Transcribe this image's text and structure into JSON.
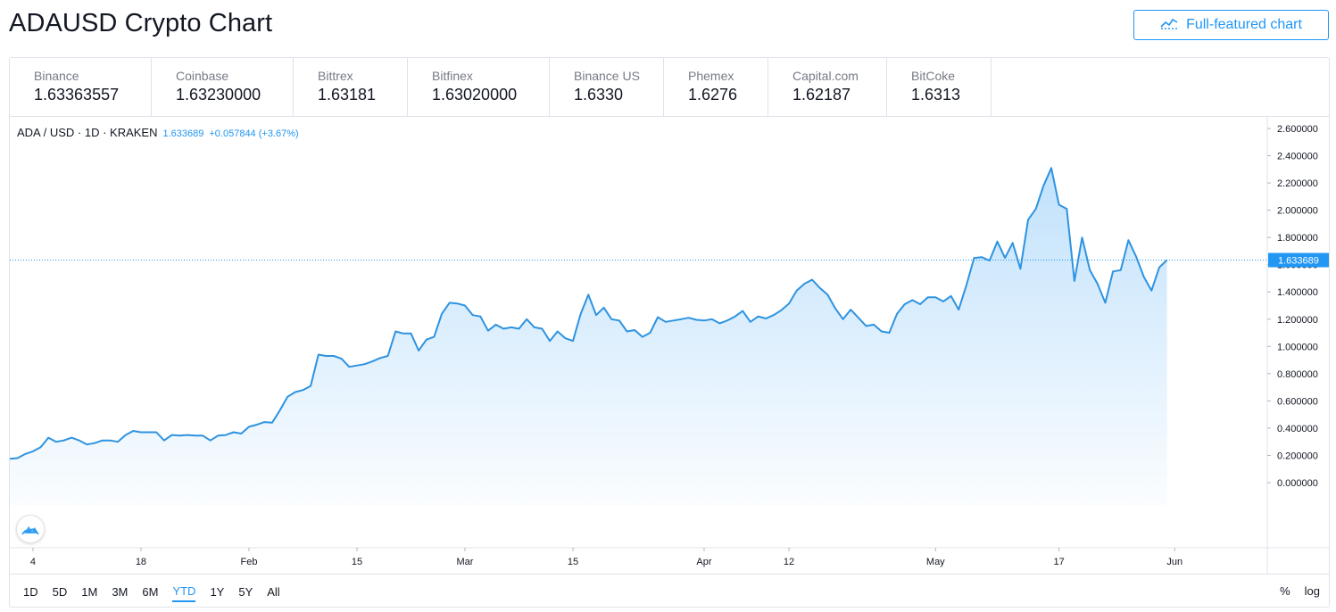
{
  "page": {
    "title": "ADAUSD Crypto Chart"
  },
  "toolbar": {
    "full_chart_label": "Full-featured chart"
  },
  "exchanges": [
    {
      "name": "Binance",
      "price": "1.63363557"
    },
    {
      "name": "Coinbase",
      "price": "1.63230000"
    },
    {
      "name": "Bittrex",
      "price": "1.63181"
    },
    {
      "name": "Bitfinex",
      "price": "1.63020000"
    },
    {
      "name": "Binance US",
      "price": "1.6330"
    },
    {
      "name": "Phemex",
      "price": "1.6276"
    },
    {
      "name": "Capital.com",
      "price": "1.62187"
    },
    {
      "name": "BitCoke",
      "price": "1.6313"
    }
  ],
  "legend": {
    "symbol": "ADA / USD · 1D · KRAKEN",
    "last": "1.633689",
    "change": "+0.057844 (+3.67%)"
  },
  "ranges": [
    "1D",
    "5D",
    "1M",
    "3M",
    "6M",
    "YTD",
    "1Y",
    "5Y",
    "All"
  ],
  "active_range": "YTD",
  "options": {
    "percent": "%",
    "log": "log"
  },
  "colors": {
    "accent": "#2196f3",
    "line": "#2e93e0",
    "grid_text": "#131722",
    "border": "#e0e3eb"
  },
  "icons": {
    "full_chart": "chart-trend-icon",
    "logo": "tradingview-cloud-icon"
  },
  "chart_data": {
    "type": "area",
    "ylim": [
      0,
      2.6
    ],
    "y_ticks": [
      "2.600000",
      "2.400000",
      "2.200000",
      "2.000000",
      "1.800000",
      "1.600000",
      "1.400000",
      "1.200000",
      "1.000000",
      "0.800000",
      "0.600000",
      "0.400000",
      "0.200000",
      "0.000000"
    ],
    "x_ticks": [
      "4",
      "18",
      "Feb",
      "15",
      "Mar",
      "15",
      "Apr",
      "12",
      "May",
      "17",
      "Jun"
    ],
    "last_value_label": "1.633689",
    "last_value": 1.633689,
    "x_start": "2021-01-01",
    "x_end": "2021-06-13",
    "x_tick_dates": [
      "2021-01-04",
      "2021-01-18",
      "2021-02-01",
      "2021-02-15",
      "2021-03-01",
      "2021-03-15",
      "2021-04-01",
      "2021-04-12",
      "2021-05-01",
      "2021-05-17",
      "2021-06-01"
    ],
    "series": [
      {
        "values": [
          0.175,
          0.18,
          0.21,
          0.23,
          0.26,
          0.33,
          0.3,
          0.31,
          0.33,
          0.31,
          0.28,
          0.29,
          0.31,
          0.31,
          0.3,
          0.35,
          0.38,
          0.37,
          0.37,
          0.37,
          0.31,
          0.35,
          0.345,
          0.35,
          0.345,
          0.345,
          0.31,
          0.345,
          0.35,
          0.37,
          0.36,
          0.41,
          0.425,
          0.445,
          0.44,
          0.53,
          0.63,
          0.665,
          0.68,
          0.71,
          0.94,
          0.93,
          0.93,
          0.91,
          0.85,
          0.86,
          0.87,
          0.89,
          0.915,
          0.93,
          1.11,
          1.095,
          1.095,
          0.97,
          1.05,
          1.07,
          1.24,
          1.32,
          1.315,
          1.3,
          1.23,
          1.22,
          1.115,
          1.16,
          1.13,
          1.14,
          1.13,
          1.2,
          1.14,
          1.13,
          1.04,
          1.11,
          1.06,
          1.04,
          1.24,
          1.38,
          1.23,
          1.285,
          1.2,
          1.19,
          1.11,
          1.12,
          1.07,
          1.1,
          1.215,
          1.18,
          1.19,
          1.2,
          1.21,
          1.195,
          1.19,
          1.2,
          1.17,
          1.19,
          1.22,
          1.26,
          1.18,
          1.22,
          1.205,
          1.23,
          1.265,
          1.315,
          1.41,
          1.46,
          1.49,
          1.43,
          1.38,
          1.28,
          1.2,
          1.27,
          1.21,
          1.15,
          1.16,
          1.11,
          1.1,
          1.24,
          1.31,
          1.34,
          1.31,
          1.36,
          1.36,
          1.33,
          1.37,
          1.27,
          1.45,
          1.65,
          1.655,
          1.63,
          1.77,
          1.65,
          1.76,
          1.57,
          1.93,
          2.01,
          2.18,
          2.31,
          2.04,
          2.01,
          1.48,
          1.8,
          1.56,
          1.46,
          1.32,
          1.55,
          1.56,
          1.78,
          1.66,
          1.51,
          1.41,
          1.58,
          1.633689
        ]
      }
    ]
  }
}
